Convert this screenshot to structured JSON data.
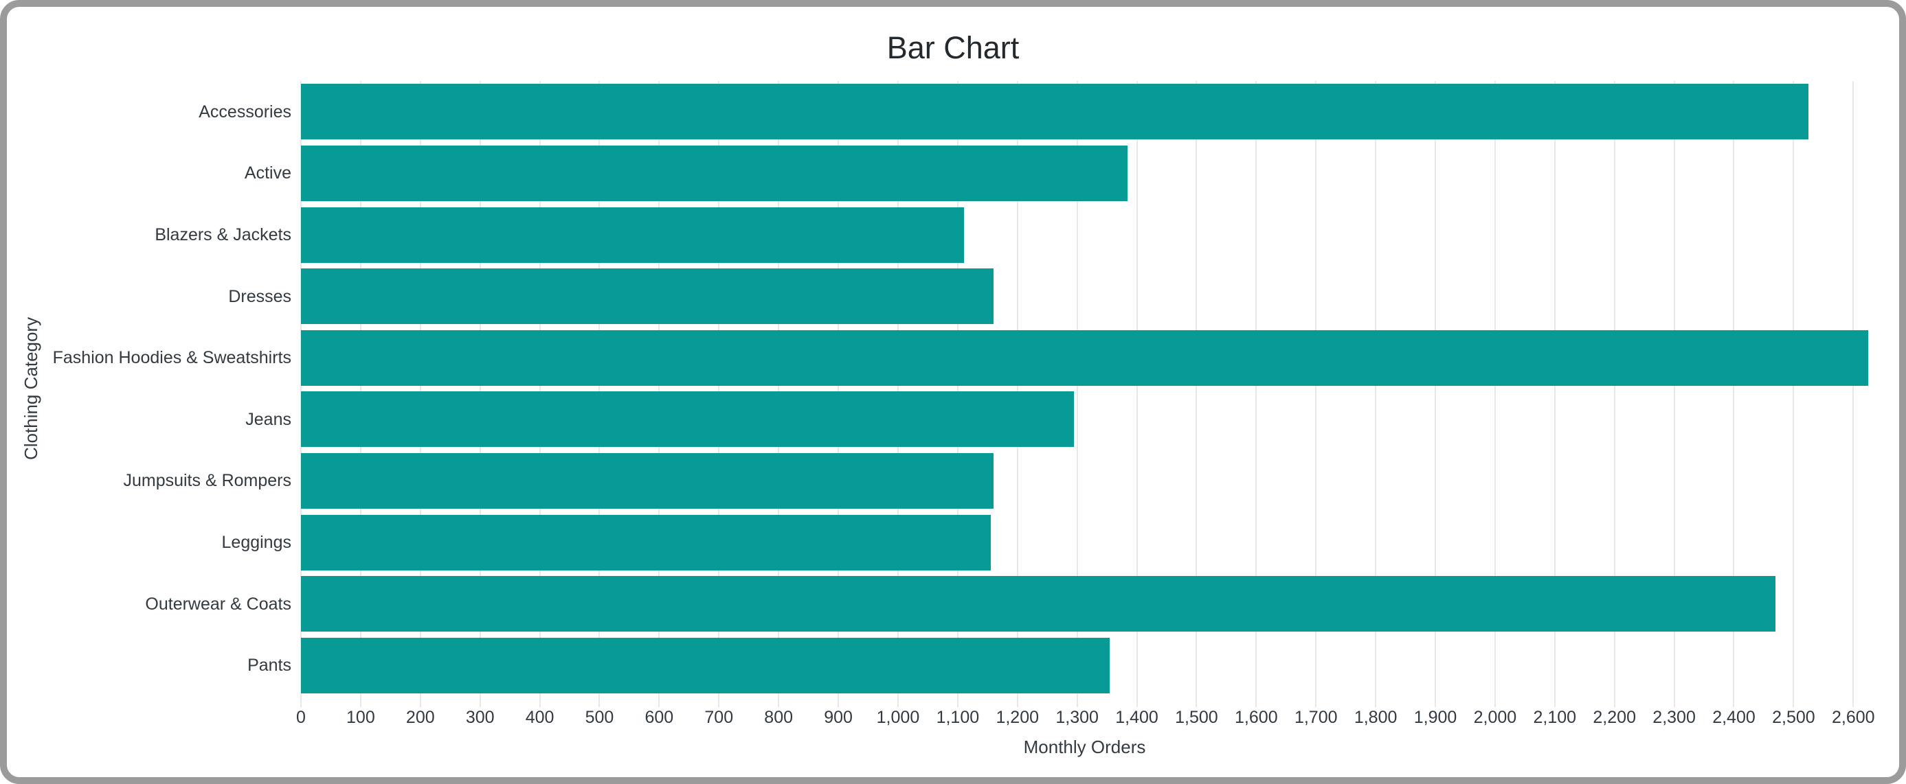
{
  "chart_data": {
    "type": "bar",
    "orientation": "horizontal",
    "title": "Bar Chart",
    "xlabel": "Monthly Orders",
    "ylabel": "Clothing Category",
    "categories": [
      "Accessories",
      "Active",
      "Blazers & Jackets",
      "Dresses",
      "Fashion Hoodies & Sweatshirts",
      "Jeans",
      "Jumpsuits & Rompers",
      "Leggings",
      "Outerwear & Coats",
      "Pants"
    ],
    "values": [
      2525,
      1385,
      1110,
      1160,
      2625,
      1295,
      1160,
      1155,
      2470,
      1355
    ],
    "xlim": [
      0,
      2625
    ],
    "xtick_step": 100,
    "xtick_labels": [
      "0",
      "100",
      "200",
      "300",
      "400",
      "500",
      "600",
      "700",
      "800",
      "900",
      "1,000",
      "1,100",
      "1,200",
      "1,300",
      "1,400",
      "1,500",
      "1,600",
      "1,700",
      "1,800",
      "1,900",
      "2,000",
      "2,100",
      "2,200",
      "2,300",
      "2,400",
      "2,500",
      "2,600"
    ],
    "grid": true,
    "legend": "none",
    "colors": {
      "bar": "#089b95",
      "grid": "#e8e8e8",
      "axis_text": "#333a41",
      "title_text": "#24292e",
      "window_border": "#9b9b9b",
      "background": "#ffffff"
    }
  }
}
